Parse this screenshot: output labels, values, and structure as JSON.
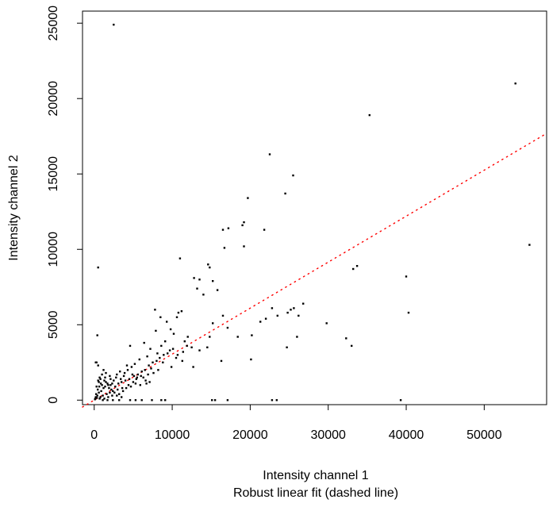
{
  "chart_data": {
    "type": "scatter",
    "title": "",
    "xlabel": "Intensity channel 1",
    "subtitle": "Robust linear fit (dashed line)",
    "ylabel": "Intensity channel 2",
    "xlim": [
      -1500,
      58000
    ],
    "ylim": [
      -300,
      25800
    ],
    "x_ticks": [
      0,
      10000,
      20000,
      30000,
      40000,
      50000
    ],
    "y_ticks": [
      0,
      5000,
      10000,
      15000,
      20000,
      25000
    ],
    "grid": false,
    "legend": "none",
    "point_color": "#000000",
    "fit_color": "#ff0000",
    "fit_line": {
      "intercept": 0,
      "slope": 0.305
    },
    "points": [
      [
        2500,
        24900
      ],
      [
        54000,
        21000
      ],
      [
        35300,
        18900
      ],
      [
        22500,
        16300
      ],
      [
        25500,
        14900
      ],
      [
        24500,
        13700
      ],
      [
        19700,
        13400
      ],
      [
        21800,
        11300
      ],
      [
        16500,
        11300
      ],
      [
        19200,
        11800
      ],
      [
        19000,
        11600
      ],
      [
        17200,
        11400
      ],
      [
        16700,
        10100
      ],
      [
        19200,
        10200
      ],
      [
        55800,
        10300
      ],
      [
        11000,
        9400
      ],
      [
        14600,
        9000
      ],
      [
        14800,
        8800
      ],
      [
        12800,
        8100
      ],
      [
        13500,
        8000
      ],
      [
        15200,
        7900
      ],
      [
        13200,
        7400
      ],
      [
        15800,
        7300
      ],
      [
        14000,
        7000
      ],
      [
        33200,
        8700
      ],
      [
        33700,
        8900
      ],
      [
        40000,
        8200
      ],
      [
        500,
        8800
      ],
      [
        26800,
        6400
      ],
      [
        25600,
        6100
      ],
      [
        25200,
        6000
      ],
      [
        24800,
        5800
      ],
      [
        26200,
        5600
      ],
      [
        22800,
        6100
      ],
      [
        23500,
        5600
      ],
      [
        40300,
        5800
      ],
      [
        29800,
        5100
      ],
      [
        32300,
        4100
      ],
      [
        33000,
        3600
      ],
      [
        24700,
        3500
      ],
      [
        26000,
        4200
      ],
      [
        22000,
        5400
      ],
      [
        21300,
        5200
      ],
      [
        20200,
        4300
      ],
      [
        20100,
        2700
      ],
      [
        17100,
        4800
      ],
      [
        16500,
        5600
      ],
      [
        15200,
        5100
      ],
      [
        14800,
        4200
      ],
      [
        14500,
        3500
      ],
      [
        13500,
        3300
      ],
      [
        16300,
        2600
      ],
      [
        18400,
        4200
      ],
      [
        400,
        4300
      ],
      [
        11200,
        5900
      ],
      [
        10800,
        5800
      ],
      [
        10600,
        5500
      ],
      [
        9800,
        4700
      ],
      [
        10200,
        4400
      ],
      [
        8500,
        5500
      ],
      [
        7800,
        6000
      ],
      [
        9300,
        5200
      ],
      [
        12000,
        4200
      ],
      [
        11600,
        3900
      ],
      [
        12500,
        3500
      ],
      [
        9100,
        3900
      ],
      [
        8600,
        3600
      ],
      [
        7200,
        3400
      ],
      [
        8100,
        3100
      ],
      [
        7900,
        4600
      ],
      [
        6400,
        3800
      ],
      [
        6800,
        2900
      ],
      [
        5800,
        2700
      ],
      [
        5200,
        2400
      ],
      [
        4600,
        3600
      ],
      [
        4200,
        2300
      ],
      [
        6100,
        1900
      ],
      [
        7300,
        2100
      ],
      [
        8800,
        2500
      ],
      [
        9900,
        2200
      ],
      [
        10500,
        2800
      ],
      [
        11300,
        2600
      ],
      [
        12700,
        2200
      ],
      [
        6900,
        1700
      ],
      [
        5500,
        1500
      ],
      [
        4900,
        1700
      ],
      [
        3800,
        1600
      ],
      [
        3300,
        1900
      ],
      [
        2900,
        1700
      ],
      [
        2500,
        1300
      ],
      [
        2100,
        1400
      ],
      [
        1800,
        1000
      ],
      [
        1500,
        1200
      ],
      [
        1200,
        800
      ],
      [
        900,
        600
      ],
      [
        600,
        500
      ],
      [
        400,
        300
      ],
      [
        300,
        2500
      ],
      [
        500,
        2300
      ],
      [
        700,
        1500
      ],
      [
        1000,
        1700
      ],
      [
        1400,
        1500
      ],
      [
        2300,
        1100
      ],
      [
        2700,
        900
      ],
      [
        3100,
        1100
      ],
      [
        3500,
        1200
      ],
      [
        4000,
        1300
      ],
      [
        4500,
        1400
      ],
      [
        5100,
        1600
      ],
      [
        5600,
        1700
      ],
      [
        6000,
        1600
      ],
      [
        6500,
        2000
      ],
      [
        7000,
        2300
      ],
      [
        7500,
        2500
      ],
      [
        8000,
        2600
      ],
      [
        8400,
        2800
      ],
      [
        8900,
        3000
      ],
      [
        9400,
        3100
      ],
      [
        9700,
        3300
      ],
      [
        10100,
        3400
      ],
      [
        10700,
        3000
      ],
      [
        11400,
        3200
      ],
      [
        11900,
        3600
      ],
      [
        8200,
        2000
      ],
      [
        7600,
        1800
      ],
      [
        6600,
        1300
      ],
      [
        5300,
        1100
      ],
      [
        4400,
        1000
      ],
      [
        3600,
        800
      ],
      [
        3000,
        700
      ],
      [
        2400,
        600
      ],
      [
        2000,
        500
      ],
      [
        1600,
        400
      ],
      [
        1100,
        300
      ],
      [
        800,
        200
      ],
      [
        350,
        150
      ],
      [
        250,
        400
      ],
      [
        450,
        700
      ],
      [
        650,
        900
      ],
      [
        850,
        1100
      ],
      [
        1300,
        1300
      ],
      [
        1700,
        1100
      ],
      [
        1900,
        800
      ],
      [
        2200,
        700
      ],
      [
        2600,
        500
      ],
      [
        3200,
        400
      ],
      [
        3700,
        600
      ],
      [
        4100,
        800
      ],
      [
        4700,
        900
      ],
      [
        5000,
        1200
      ],
      [
        5400,
        1400
      ],
      [
        5900,
        1000
      ],
      [
        6300,
        1500
      ],
      [
        6700,
        1100
      ],
      [
        7100,
        1200
      ],
      [
        3400,
        1400
      ],
      [
        3900,
        1800
      ],
      [
        4300,
        2000
      ],
      [
        4800,
        2200
      ],
      [
        2800,
        1500
      ],
      [
        2100,
        1000
      ],
      [
        1400,
        900
      ],
      [
        1000,
        1000
      ],
      [
        600,
        1200
      ],
      [
        300,
        900
      ],
      [
        500,
        1300
      ],
      [
        800,
        1400
      ],
      [
        1200,
        2000
      ],
      [
        1500,
        1800
      ],
      [
        2000,
        1600
      ],
      [
        200,
        200
      ],
      [
        150,
        100
      ],
      [
        100,
        50
      ],
      [
        700,
        100
      ],
      [
        1300,
        100
      ],
      [
        1800,
        200
      ],
      [
        2300,
        300
      ],
      [
        2900,
        300
      ],
      [
        3500,
        200
      ],
      [
        4600,
        0
      ],
      [
        5300,
        0
      ],
      [
        6100,
        0
      ],
      [
        7400,
        0
      ],
      [
        8600,
        0
      ],
      [
        9100,
        0
      ],
      [
        3200,
        0
      ],
      [
        2400,
        0
      ],
      [
        1700,
        0
      ],
      [
        1100,
        0
      ],
      [
        15100,
        0
      ],
      [
        15500,
        0
      ],
      [
        17100,
        0
      ],
      [
        22800,
        0
      ],
      [
        23400,
        0
      ],
      [
        39300,
        0
      ],
      [
        200,
        2500
      ]
    ]
  }
}
